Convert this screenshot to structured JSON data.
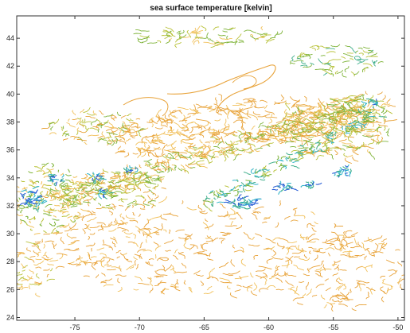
{
  "plot": {
    "title": "sea surface temperature [kelvin]",
    "x_axis": {
      "min": -79.5,
      "max": -49.5,
      "ticks": [
        -75,
        -70,
        -65,
        -60,
        -55,
        -50
      ]
    },
    "y_axis": {
      "min": 23.8,
      "max": 45.6,
      "ticks": [
        24,
        26,
        28,
        30,
        32,
        34,
        36,
        38,
        40,
        42,
        44
      ]
    },
    "colors": {
      "warm": "#e8a33a",
      "warm_light": "#f1c05a",
      "mid": "#b9c23a",
      "green": "#7fb43a",
      "teal": "#3fae8a",
      "cyan": "#34b5c9",
      "blue": "#2a5fd6",
      "frame": "#333333"
    }
  }
}
